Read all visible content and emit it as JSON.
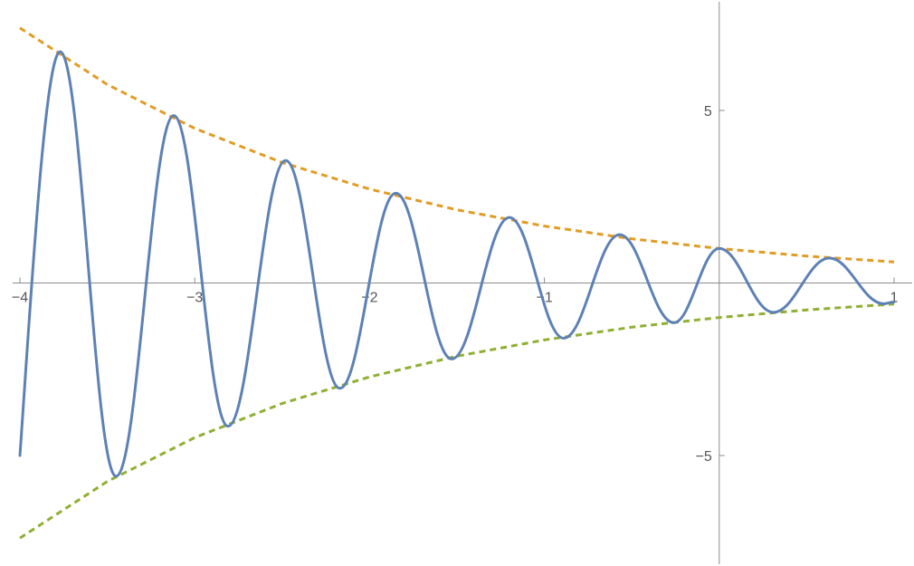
{
  "chart_data": {
    "type": "line",
    "title": "",
    "xlabel": "",
    "ylabel": "",
    "xlim": [
      -4,
      1
    ],
    "ylim": [
      -8.2,
      8.2
    ],
    "grid": false,
    "legend": "none",
    "x_ticks": [
      {
        "value": -4,
        "label": "−4"
      },
      {
        "value": -3,
        "label": "−3"
      },
      {
        "value": -2,
        "label": "−2"
      },
      {
        "value": -1,
        "label": "−1"
      },
      {
        "value": 1,
        "label": "1"
      }
    ],
    "y_ticks": [
      {
        "value": 5,
        "label": "5"
      },
      {
        "value": -5,
        "label": "−5"
      }
    ],
    "series": [
      {
        "style": "solid",
        "color": "#5e81b5",
        "x": [
          -4,
          -3.77,
          -3.45,
          -3.12,
          -2.81,
          -2.48,
          -2.17,
          -1.85,
          -1.53,
          -1.2,
          -0.89,
          -0.57,
          -0.26,
          0,
          0.31,
          0.63,
          0.94,
          1
        ],
        "y": [
          -5,
          6.7,
          -5.6,
          4.85,
          -4.15,
          3.55,
          -3.05,
          2.6,
          -2.2,
          1.9,
          -1.6,
          1.4,
          -1.15,
          1.0,
          -0.85,
          0.72,
          -0.6,
          -0.55
        ]
      },
      {
        "style": "dashed",
        "color": "#e19c24",
        "x": [
          -4,
          -3.5,
          -3,
          -2.5,
          -2,
          -1.5,
          -1,
          -0.5,
          0,
          0.5,
          1
        ],
        "y": [
          7.39,
          5.75,
          4.48,
          3.49,
          2.72,
          2.12,
          1.65,
          1.28,
          1.0,
          0.78,
          0.61
        ]
      },
      {
        "style": "dashed",
        "color": "#8fb032",
        "x": [
          -4,
          -3.5,
          -3,
          -2.5,
          -2,
          -1.5,
          -1,
          -0.5,
          0,
          0.5,
          1
        ],
        "y": [
          -7.39,
          -5.75,
          -4.48,
          -3.49,
          -2.72,
          -2.12,
          -1.65,
          -1.28,
          -1.0,
          -0.78,
          -0.61
        ]
      }
    ]
  }
}
